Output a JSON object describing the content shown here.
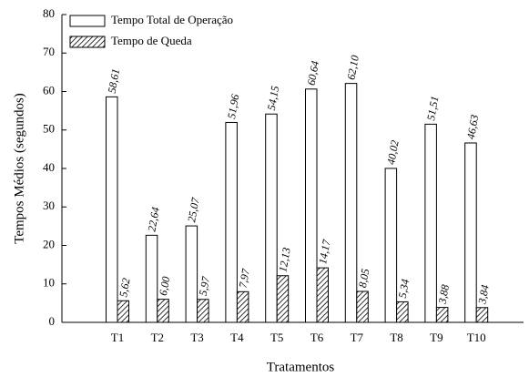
{
  "chart_data": {
    "type": "bar",
    "xlabel": "Tratamentos",
    "ylabel": "Tempos Médios (segundos)",
    "categories": [
      "T1",
      "T2",
      "T3",
      "T4",
      "T5",
      "T6",
      "T7",
      "T8",
      "T9",
      "T10"
    ],
    "series": [
      {
        "name": "Tempo Total de Operação",
        "color": "#ffffff",
        "hatch": false,
        "values": [
          58.61,
          22.64,
          25.07,
          51.96,
          54.15,
          60.64,
          62.1,
          40.02,
          51.51,
          46.63
        ],
        "value_labels": [
          "58,61",
          "22,64",
          "25,07",
          "51,96",
          "54,15",
          "60,64",
          "62,10",
          "40,02",
          "51,51",
          "46,63"
        ]
      },
      {
        "name": "Tempo de Queda",
        "color": "#000000",
        "hatch": true,
        "values": [
          5.62,
          6.0,
          5.97,
          7.97,
          12.13,
          14.17,
          8.05,
          5.34,
          3.88,
          3.84
        ],
        "value_labels": [
          "5,62",
          "6,00",
          "5,97",
          "7,97",
          "12,13",
          "14,17",
          "8,05",
          "5,34",
          "3,88",
          "3,84"
        ]
      }
    ],
    "ylim": [
      0,
      80
    ],
    "yticks": [
      0,
      10,
      20,
      30,
      40,
      50,
      60,
      70,
      80
    ],
    "grid": false,
    "legend": "upper left"
  }
}
